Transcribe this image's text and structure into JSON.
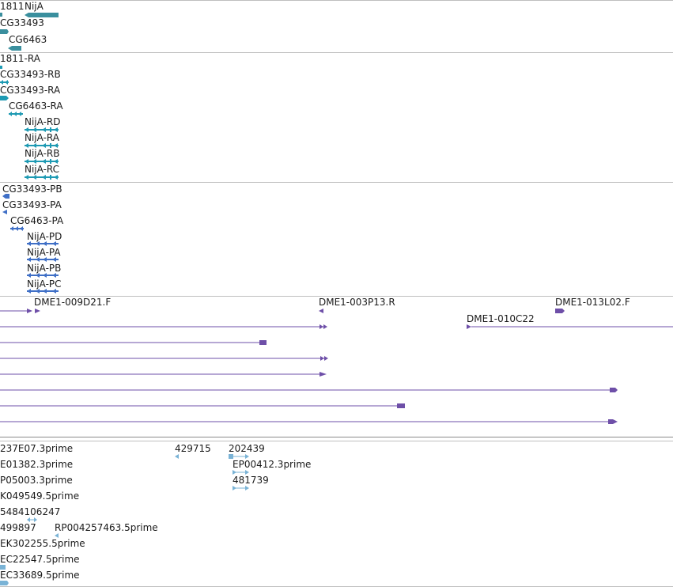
{
  "colors": {
    "gene": "#3a8f9e",
    "transcript": "#1e9ab3",
    "protein": "#3f6fc6",
    "clone": "#6e4fa8",
    "est": "#7ab3d6",
    "divider": "#bfbfbf",
    "text": "#1a1a1a"
  },
  "tracks": {
    "genes": {
      "labels": [
        "1811",
        "NijA",
        "CG33493",
        "CG6463"
      ]
    },
    "transcripts": {
      "labels": [
        "1811-RA",
        "CG33493-RB",
        "CG33493-RA",
        "CG6463-RA",
        "NijA-RD",
        "NijA-RA",
        "NijA-RB",
        "NijA-RC"
      ]
    },
    "proteins": {
      "labels": [
        "CG33493-PB",
        "CG33493-PA",
        "CG6463-PA",
        "NijA-PD",
        "NijA-PA",
        "NijA-PB",
        "NijA-PC"
      ]
    },
    "clones": {
      "labels": [
        "DME1-009D21.F",
        "DME1-003P13.R",
        "DME1-013L02.F",
        "DME1-010C22"
      ]
    },
    "ests": {
      "labels": [
        "237E07.3prime",
        "429715",
        "202439",
        "E01382.3prime",
        "EP00412.3prime",
        "P05003.3prime",
        "481739",
        "K049549.5prime",
        "5484106247",
        "499897",
        "RP004257463.5prime",
        "EK302255.5prime",
        "EC22547.5prime",
        "EC33689.5prime"
      ]
    }
  }
}
